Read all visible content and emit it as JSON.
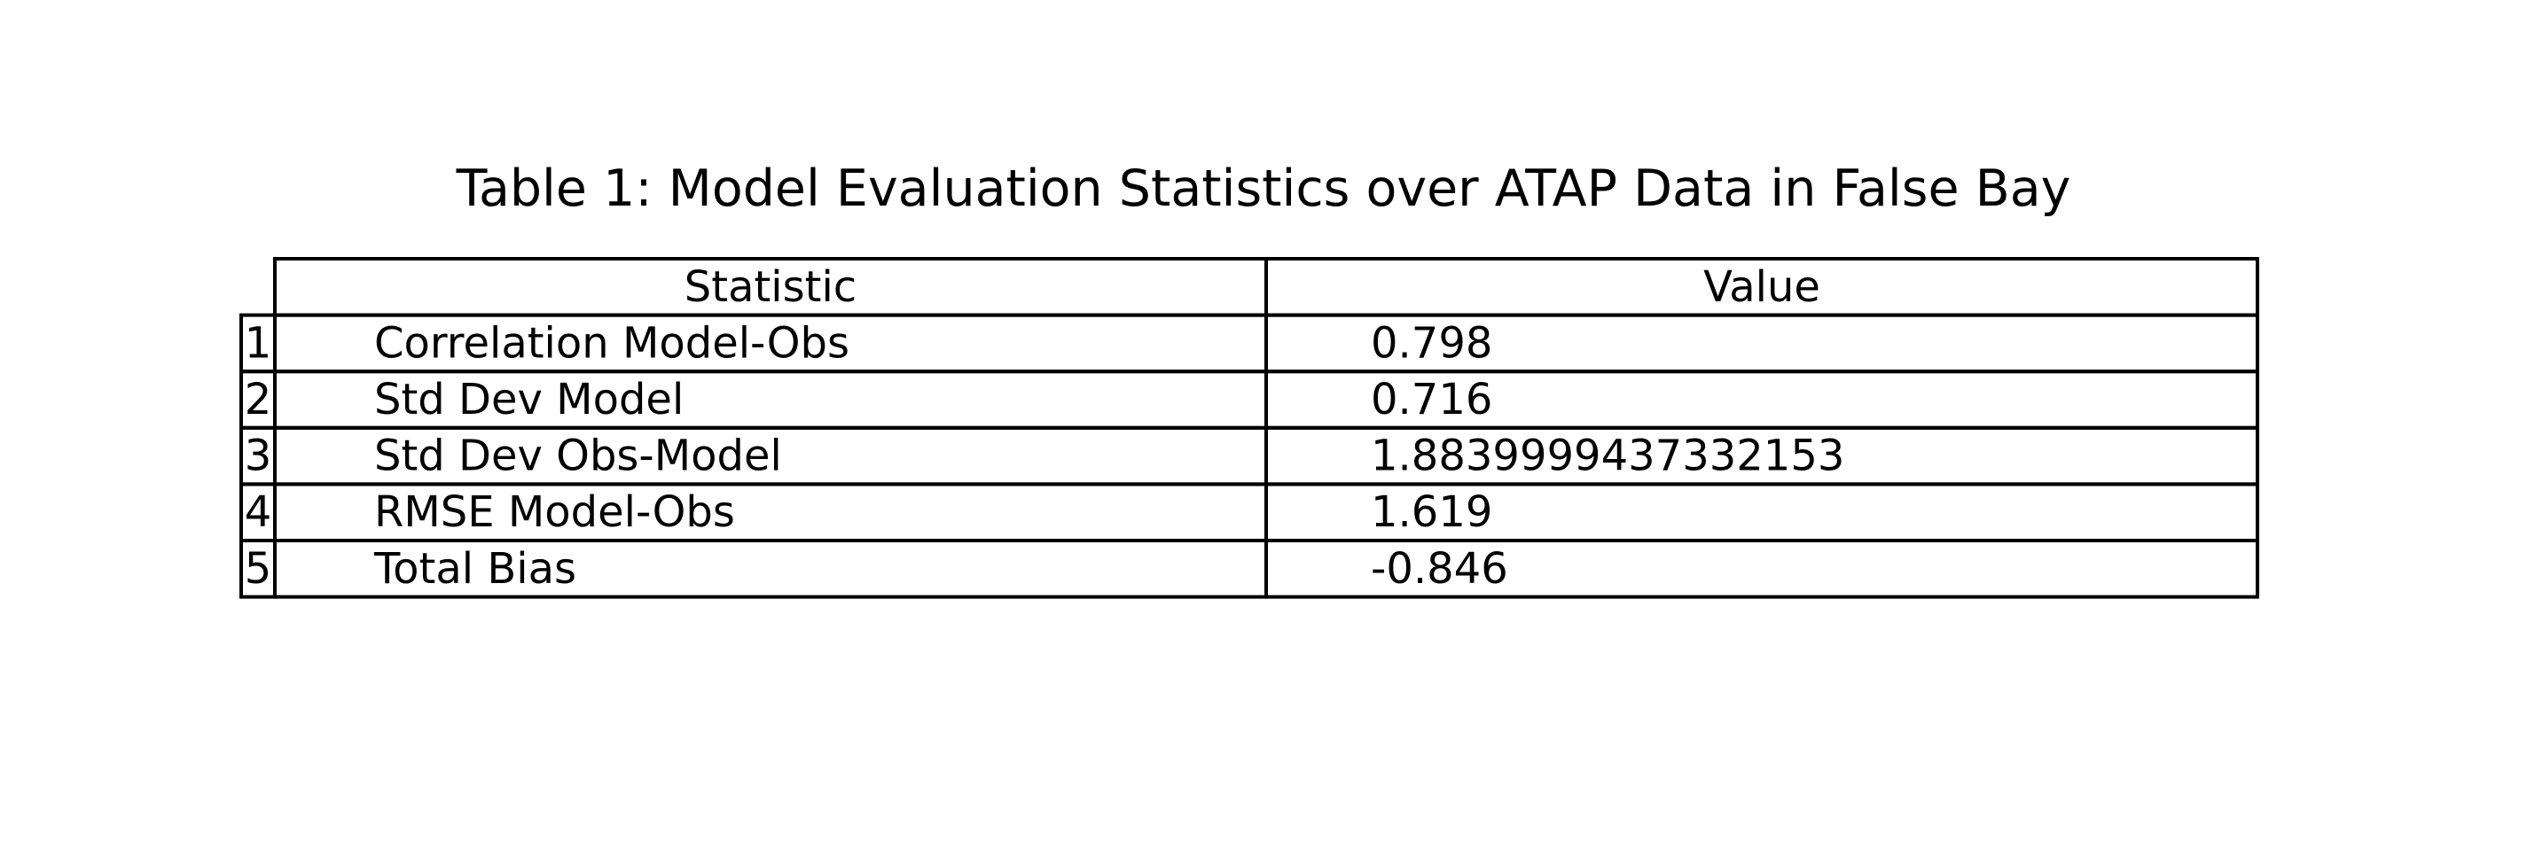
{
  "chart_data": {
    "type": "table",
    "title": "Table 1: Model Evaluation Statistics over ATAP Data in False Bay",
    "columns": [
      "Statistic",
      "Value"
    ],
    "rows": [
      {
        "index": "1",
        "statistic": "Correlation Model-Obs",
        "value": "0.798"
      },
      {
        "index": "2",
        "statistic": "Std Dev Model",
        "value": "0.716"
      },
      {
        "index": "3",
        "statistic": "Std Dev Obs-Model",
        "value": "1.8839999437332153"
      },
      {
        "index": "4",
        "statistic": "RMSE Model-Obs",
        "value": "1.619"
      },
      {
        "index": "5",
        "statistic": "Total Bias",
        "value": "-0.846"
      }
    ],
    "colors": {
      "line": "#000000",
      "text": "#000000",
      "background": "#ffffff"
    }
  }
}
